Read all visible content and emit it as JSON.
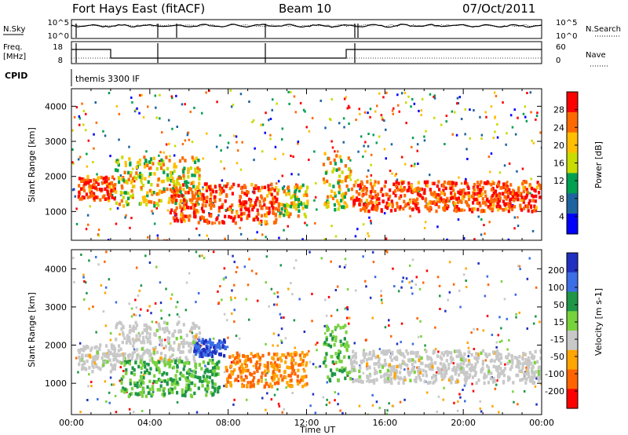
{
  "header": {
    "station": "Fort Hays East (fitACF)",
    "beam": "Beam 10",
    "date": "07/Oct/2011"
  },
  "noise_panel": {
    "left_label": "N.Sky",
    "right_label": "N.Search",
    "left_ticks": [
      "10^5",
      "10^0"
    ],
    "right_ticks": [
      "10^5",
      "10^0"
    ]
  },
  "freq_panel": {
    "left_label_1": "Freq.",
    "left_label_2": "[MHz]",
    "right_label": "Nave",
    "left_ticks": [
      "18",
      "8"
    ],
    "right_ticks": [
      "60",
      "0"
    ]
  },
  "cpid": {
    "label": "CPID",
    "program": "themis 3300 IF"
  },
  "chart_data": [
    {
      "type": "heatmap",
      "title": "",
      "xlabel": "",
      "ylabel": "Slant Range [km]",
      "y_ticks": [
        "1000",
        "2000",
        "3000",
        "4000"
      ],
      "ylim": [
        180,
        4500
      ],
      "colorbar": {
        "label": "Power [dB]",
        "ticks": [
          "28",
          "24",
          "20",
          "16",
          "12",
          "8",
          "4"
        ],
        "colors": [
          "#ff0000",
          "#ff6a00",
          "#ffbf00",
          "#c8dc00",
          "#00a050",
          "#1e64a0",
          "#0000ff"
        ]
      },
      "regions": [
        {
          "t0": 0.3,
          "t1": 2.2,
          "r0": 1350,
          "r1": 2050,
          "level": "high"
        },
        {
          "t0": 2.2,
          "t1": 6.5,
          "r0": 1200,
          "r1": 2600,
          "level": "mid"
        },
        {
          "t0": 5.0,
          "t1": 10.5,
          "r0": 700,
          "r1": 1850,
          "level": "high"
        },
        {
          "t0": 10.5,
          "t1": 12.0,
          "r0": 900,
          "r1": 1800,
          "level": "mid"
        },
        {
          "t0": 12.8,
          "t1": 14.2,
          "r0": 1100,
          "r1": 2700,
          "level": "mid"
        },
        {
          "t0": 14.2,
          "t1": 24.0,
          "r0": 1050,
          "r1": 1900,
          "level": "high"
        }
      ]
    },
    {
      "type": "heatmap",
      "title": "",
      "xlabel": "Time UT",
      "ylabel": "Slant Range [km]",
      "x_ticks": [
        "00:00",
        "04:00",
        "08:00",
        "12:00",
        "16:00",
        "20:00",
        "00:00"
      ],
      "y_ticks": [
        "1000",
        "2000",
        "3000",
        "4000"
      ],
      "ylim": [
        180,
        4500
      ],
      "colorbar": {
        "label": "Velocity [m s-1]",
        "ticks": [
          "200",
          "100",
          "50",
          "15",
          "-15",
          "-50",
          "-100",
          "-200"
        ],
        "colors": [
          "#2030c0",
          "#3c6ee6",
          "#1e9646",
          "#78d23c",
          "#c8c8c8",
          "#ffa500",
          "#ff6400",
          "#ff0000"
        ]
      },
      "regions": [
        {
          "t0": 0.3,
          "t1": 2.2,
          "r0": 1350,
          "r1": 2050,
          "level": "ground"
        },
        {
          "t0": 2.2,
          "t1": 6.5,
          "r0": 1600,
          "r1": 2650,
          "level": "ground"
        },
        {
          "t0": 2.5,
          "t1": 7.5,
          "r0": 700,
          "r1": 1650,
          "level": "green"
        },
        {
          "t0": 6.2,
          "t1": 7.8,
          "r0": 1750,
          "r1": 2200,
          "level": "blue"
        },
        {
          "t0": 7.8,
          "t1": 12.0,
          "r0": 950,
          "r1": 1850,
          "level": "orange"
        },
        {
          "t0": 12.8,
          "t1": 14.2,
          "r0": 1100,
          "r1": 2600,
          "level": "green"
        },
        {
          "t0": 14.2,
          "t1": 24.0,
          "r0": 1050,
          "r1": 1900,
          "level": "ground"
        }
      ]
    }
  ]
}
